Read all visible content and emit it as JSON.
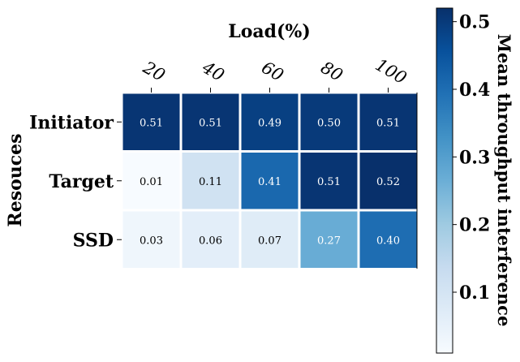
{
  "chart_data": {
    "type": "heatmap",
    "title": "",
    "xlabel": "Load(%)",
    "ylabel": "Resouces",
    "x_categories": [
      "20",
      "40",
      "60",
      "80",
      "100"
    ],
    "y_categories": [
      "Initiator",
      "Target",
      "SSD"
    ],
    "values": [
      [
        0.51,
        0.51,
        0.49,
        0.5,
        0.51
      ],
      [
        0.01,
        0.11,
        0.41,
        0.51,
        0.52
      ],
      [
        0.03,
        0.06,
        0.07,
        0.27,
        0.4
      ]
    ],
    "value_labels": [
      [
        "0.51",
        "0.51",
        "0.49",
        "0.50",
        "0.51"
      ],
      [
        "0.01",
        "0.11",
        "0.41",
        "0.51",
        "0.52"
      ],
      [
        "0.03",
        "0.06",
        "0.07",
        "0.27",
        "0.40"
      ]
    ],
    "colorbar": {
      "label": "Mean throughput interference",
      "vmin": 0.01,
      "vmax": 0.52,
      "ticks": [
        0.1,
        0.2,
        0.3,
        0.4,
        0.5
      ],
      "tick_labels": [
        "0.1",
        "0.2",
        "0.3",
        "0.4",
        "0.5"
      ],
      "colormap": "Blues",
      "orientation": "vertical",
      "placement": "right"
    },
    "x_axis_position": "top",
    "grid": false
  },
  "colors": {
    "background": "#ffffff",
    "cell_border": "#ffffff",
    "axis": "#000000",
    "text_dark": "#000000",
    "text_light": "#ffffff"
  }
}
